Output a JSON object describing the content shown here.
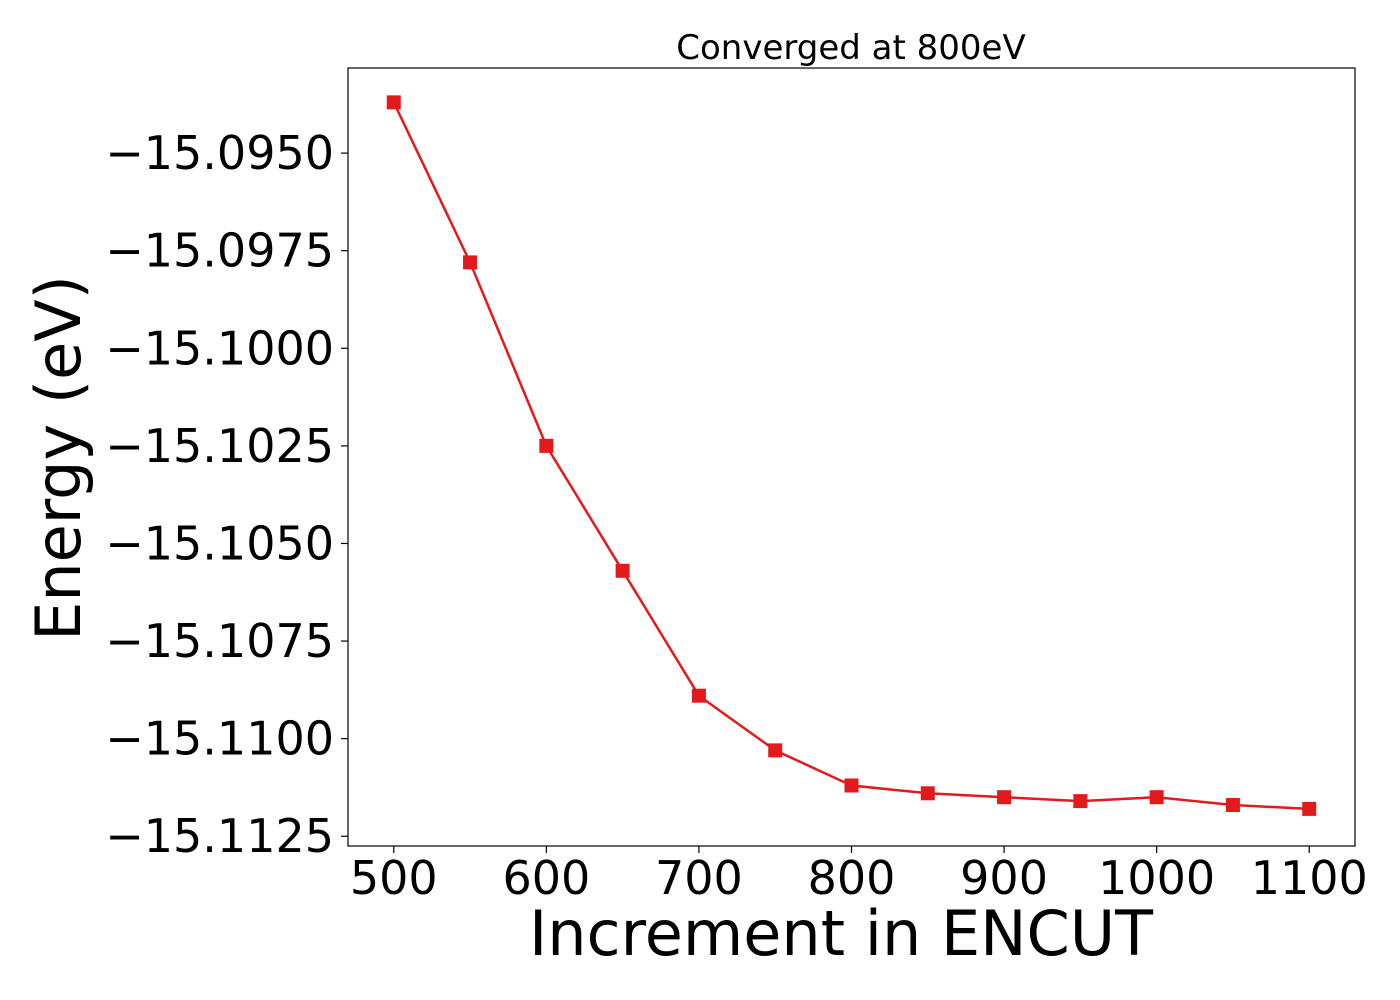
{
  "chart_data": {
    "type": "line",
    "title": "Converged at 800eV",
    "xlabel": "Increment in ENCUT",
    "ylabel": "Energy (eV)",
    "xlim": [
      470,
      1130
    ],
    "ylim": [
      -15.11275,
      -15.09282
    ],
    "xticks": [
      500,
      600,
      700,
      800,
      900,
      1000,
      1100
    ],
    "yticks": [
      -15.095,
      -15.0975,
      -15.1,
      -15.1025,
      -15.105,
      -15.1075,
      -15.11,
      -15.1125
    ],
    "ytick_labels": [
      "−15.0950",
      "−15.0975",
      "−15.1000",
      "−15.1025",
      "−15.1050",
      "−15.1075",
      "−15.1100",
      "−15.1125"
    ],
    "grid": false,
    "marker": "square",
    "color": "#e31a1c",
    "series": [
      {
        "x": [
          500,
          550,
          600,
          650,
          700,
          750,
          800,
          850,
          900,
          950,
          1000,
          1050,
          1100
        ],
        "values": [
          -15.0937,
          -15.0978,
          -15.1025,
          -15.1057,
          -15.1089,
          -15.1103,
          -15.1112,
          -15.1114,
          -15.1115,
          -15.1116,
          -15.1115,
          -15.1117,
          -15.1118
        ]
      }
    ]
  }
}
